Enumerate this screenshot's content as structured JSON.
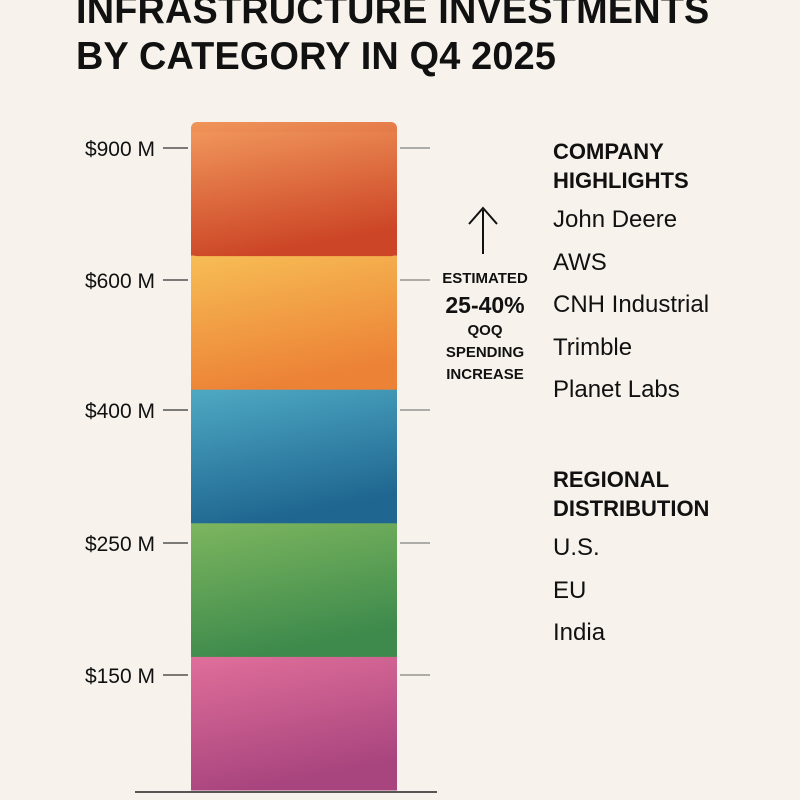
{
  "chart_data": {
    "type": "bar",
    "stacked": true,
    "title": [
      "INFRASTRUCTURE INVESTMENTS",
      "BY CATEGORY IN Q4 2025"
    ],
    "y_ticks": [
      {
        "label": "$900 M",
        "value": 900
      },
      {
        "label": "$600 M",
        "value": 600
      },
      {
        "label": "$400 M",
        "value": 400
      },
      {
        "label": "$250 M",
        "value": 250
      },
      {
        "label": "$150 M",
        "value": 150
      }
    ],
    "segments": [
      {
        "color_top": "#e06f9a",
        "color_bottom": "#a8447e"
      },
      {
        "color_top": "#7db65f",
        "color_bottom": "#3d8a4c"
      },
      {
        "color_top": "#4ea9c4",
        "color_bottom": "#1f6690"
      },
      {
        "color_top": "#f7bd55",
        "color_bottom": "#ec8236"
      },
      {
        "color_top": "#f0955a",
        "color_bottom": "#cc4526"
      }
    ],
    "grid": false,
    "legend": "none"
  },
  "annotation": {
    "icon": "arrow-up-icon",
    "lines": [
      "ESTIMATED",
      "25-40%",
      "QOQ",
      "SPENDING",
      "INCREASE"
    ]
  },
  "company_highlights": {
    "heading": [
      "COMPANY",
      "HIGHLIGHTS"
    ],
    "items": [
      "John Deere",
      "AWS",
      "CNH Industrial",
      "Trimble",
      "Planet Labs"
    ]
  },
  "regional_distribution": {
    "heading": [
      "REGIONAL",
      "DISTRIBUTION"
    ],
    "items": [
      "U.S.",
      "EU",
      "India"
    ]
  }
}
